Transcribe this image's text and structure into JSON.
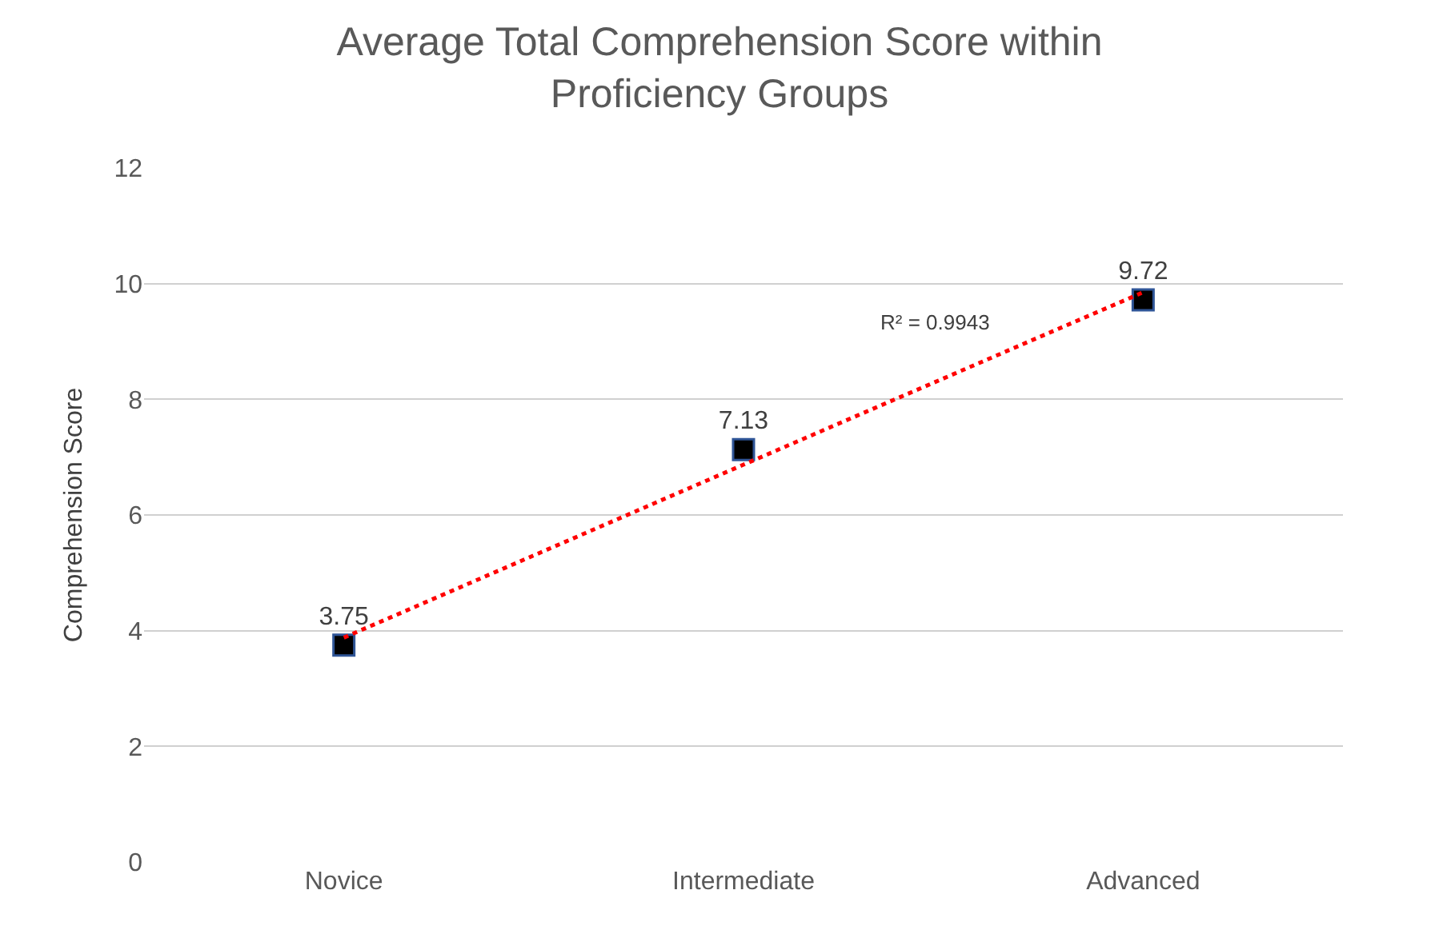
{
  "chart_data": {
    "type": "scatter",
    "title": "Average Total Comprehension Score within\nProficiency Groups",
    "ylabel": "Comprehension Score",
    "categories": [
      "Novice",
      "Intermediate",
      "Advanced"
    ],
    "series": [
      {
        "color": "#000000",
        "values": [
          3.75,
          7.13,
          9.72
        ],
        "value_labels": [
          "3.75",
          "7.13",
          "9.72"
        ],
        "marker": "square"
      },
      {
        "type": "line",
        "color": "#ff0000",
        "values": [
          3.88,
          6.87,
          9.85
        ],
        "line_style": "dotted",
        "marker": "none"
      }
    ],
    "annotations": [
      "R² = 0.9943"
    ],
    "ylim": [
      0,
      12
    ],
    "yticks": [
      0,
      2,
      4,
      6,
      8,
      10,
      12
    ],
    "grid": "y"
  }
}
